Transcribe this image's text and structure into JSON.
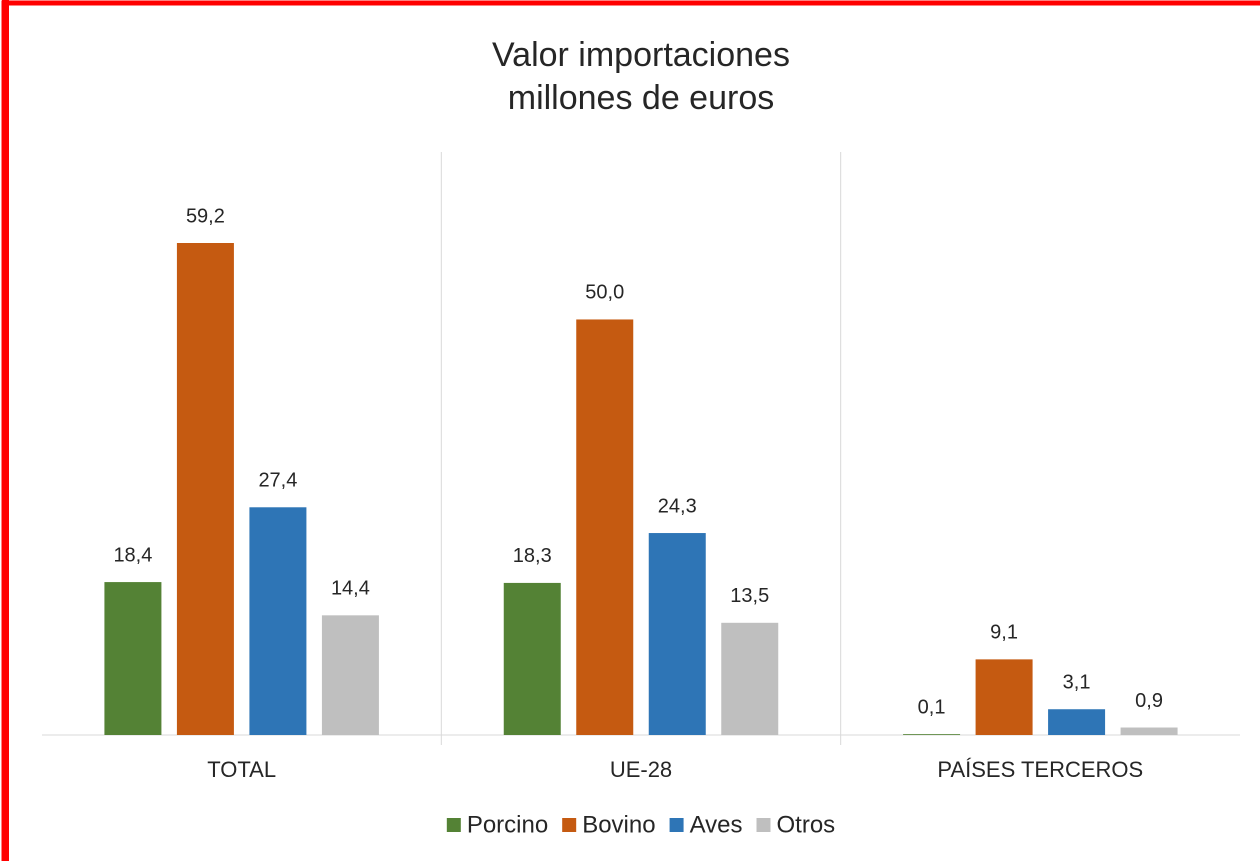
{
  "chart_data": {
    "type": "bar",
    "title": "Valor importaciones",
    "subtitle": "millones de euros",
    "categories": [
      "TOTAL",
      "UE-28",
      "PAÍSES TERCEROS"
    ],
    "series": [
      {
        "name": "Porcino",
        "color": "#548235",
        "values": [
          18.4,
          18.3,
          0.1
        ],
        "value_labels": [
          "18,4",
          "18,3",
          "0,1"
        ]
      },
      {
        "name": "Bovino",
        "color": "#c55a11",
        "values": [
          59.2,
          50.0,
          9.1
        ],
        "value_labels": [
          "59,2",
          "50,0",
          "9,1"
        ]
      },
      {
        "name": "Aves",
        "color": "#2e75b6",
        "values": [
          27.4,
          24.3,
          3.1
        ],
        "value_labels": [
          "27,4",
          "24,3",
          "3,1"
        ]
      },
      {
        "name": "Otros",
        "color": "#bfbfbf",
        "values": [
          14.4,
          13.5,
          0.9
        ],
        "value_labels": [
          "14,4",
          "13,5",
          "0,9"
        ]
      }
    ],
    "legend": "bottom"
  }
}
